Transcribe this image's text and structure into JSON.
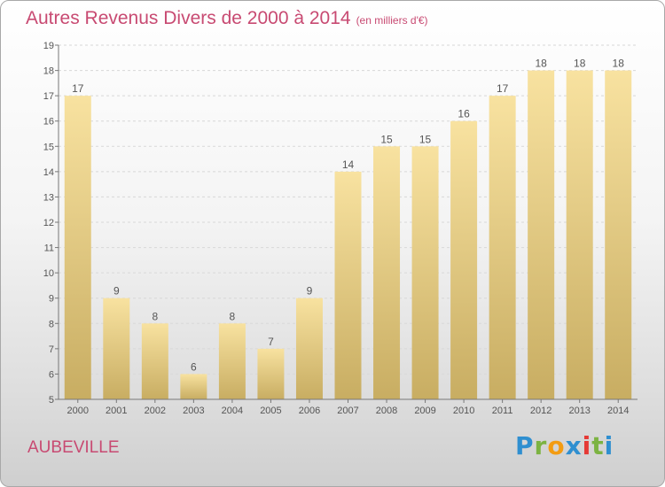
{
  "title": "Autres Revenus Divers de 2000 à 2014",
  "title_unit": "(en milliers d'€)",
  "place": "AUBEVILLE",
  "brand": {
    "letters": [
      "P",
      "r",
      "o",
      "x",
      "i",
      "t",
      "i"
    ],
    "colors": [
      "#2f8fd0",
      "#7cb342",
      "#f39c12",
      "#2f8fd0",
      "#e53935",
      "#7cb342",
      "#2f8fd0"
    ]
  },
  "colors": {
    "title": "#c84a72",
    "bar_top": "#f8e2a0",
    "bar_bottom": "#c8ad62"
  },
  "chart_data": {
    "type": "bar",
    "title": "Autres Revenus Divers de 2000 à 2014",
    "subtitle": "(en milliers d'€)",
    "categories": [
      "2000",
      "2001",
      "2002",
      "2003",
      "2004",
      "2005",
      "2006",
      "2007",
      "2008",
      "2009",
      "2010",
      "2011",
      "2012",
      "2013",
      "2014"
    ],
    "values": [
      17,
      9,
      8,
      6,
      8,
      7,
      9,
      14,
      15,
      15,
      16,
      17,
      18,
      18,
      18
    ],
    "y_ticks": [
      "5",
      "6",
      "7",
      "8",
      "9",
      "10",
      "11",
      "12",
      "13",
      "14",
      "15",
      "16",
      "17",
      "18",
      "19"
    ],
    "ylim": [
      5,
      19
    ],
    "grid": true,
    "xlabel": "",
    "ylabel": ""
  }
}
